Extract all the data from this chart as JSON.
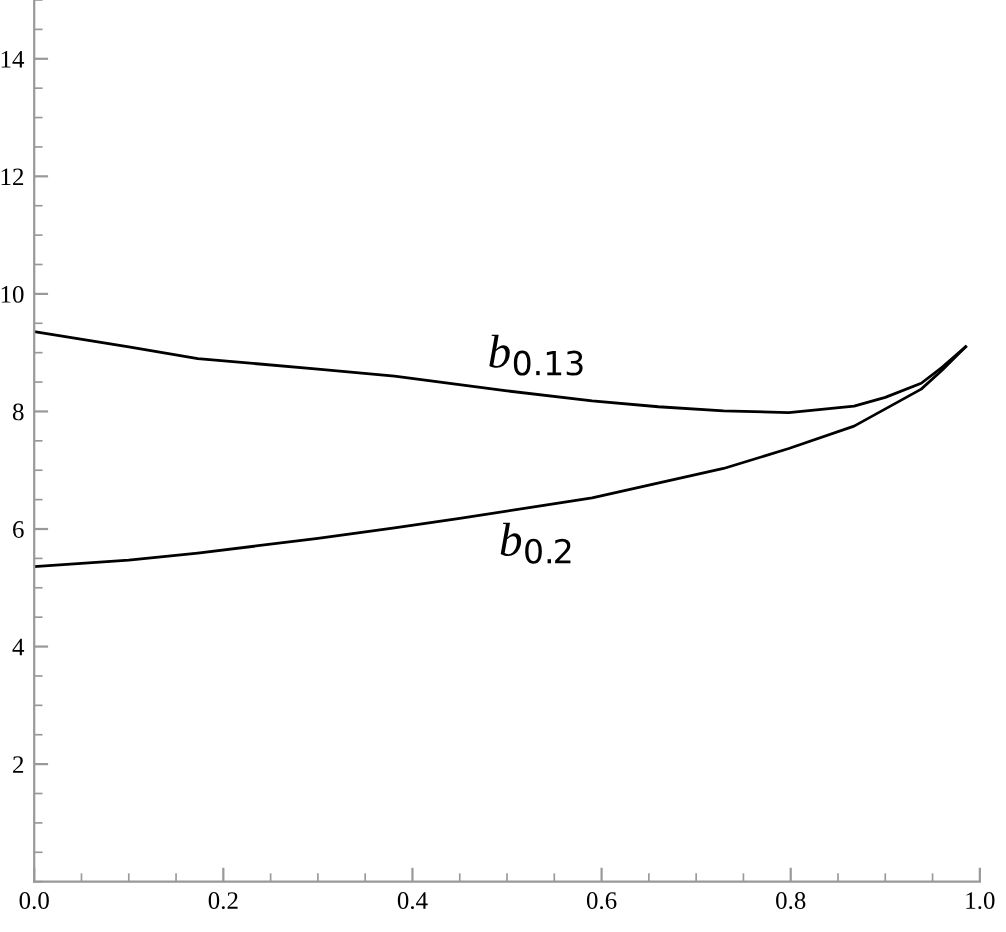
{
  "chart_data": {
    "type": "line",
    "series": [
      {
        "name": "b$_{0.13}$",
        "color": "#000000",
        "x": [
          0.0,
          0.1,
          0.173,
          0.3,
          0.381,
          0.5,
          0.59,
          0.66,
          0.729,
          0.798,
          0.867,
          0.9,
          0.938,
          0.96,
          0.985
        ],
        "values": [
          9.36,
          9.1,
          8.9,
          8.72,
          8.6,
          8.35,
          8.18,
          8.08,
          8.01,
          7.98,
          8.09,
          8.24,
          8.48,
          8.75,
          9.1
        ]
      },
      {
        "name": "b$_{0.2}$",
        "color": "#000000",
        "x": [
          0.0,
          0.1,
          0.173,
          0.3,
          0.381,
          0.45,
          0.59,
          0.729,
          0.798,
          0.867,
          0.938,
          0.96,
          0.985
        ],
        "values": [
          5.36,
          5.47,
          5.59,
          5.84,
          6.02,
          6.18,
          6.53,
          7.03,
          7.37,
          7.75,
          8.38,
          8.7,
          9.1
        ]
      }
    ],
    "xlim": [
      0,
      1.0
    ],
    "ylim": [
      0,
      15
    ],
    "xticks": [
      {
        "value": 0,
        "label": "0.0"
      },
      0.2,
      0.4,
      0.6,
      0.8,
      {
        "value": 1,
        "label": "1.0"
      }
    ],
    "yticks": [
      2,
      4,
      6,
      8,
      10,
      12,
      14
    ],
    "grid": false,
    "legend": false,
    "marker": "none",
    "line_style": "solid"
  }
}
